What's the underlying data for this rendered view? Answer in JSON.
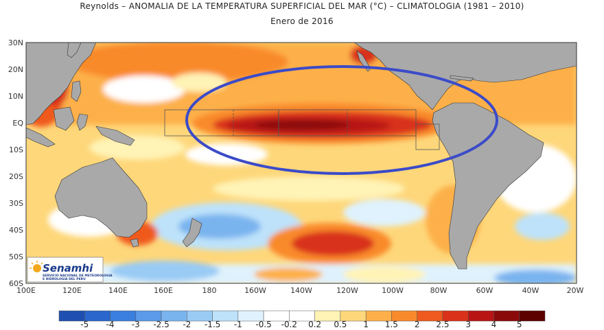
{
  "title": "Reynolds – ANOMALIA DE LA TEMPERATURA SUPERFICIAL DEL MAR (°C) – CLIMATOLOGIA (1981 – 2010)",
  "subtitle": "Enero de 2016",
  "lat_labels": [
    "30N",
    "20N",
    "10N",
    "EQ",
    "10S",
    "20S",
    "30S",
    "40S",
    "50S",
    "60S"
  ],
  "lon_labels": [
    "100E",
    "120E",
    "140E",
    "160E",
    "180",
    "160W",
    "140W",
    "120W",
    "100W",
    "80W",
    "60W",
    "40W",
    "20W"
  ],
  "colorbar": {
    "labels": [
      "-5",
      "-4",
      "-3",
      "-2.5",
      "-2",
      "-1.5",
      "-1",
      "-0.5",
      "-0.2",
      "0.2",
      "0.5",
      "1",
      "1.5",
      "2",
      "2.5",
      "3",
      "4",
      "5"
    ],
    "colors": [
      "#1f4fb0",
      "#2a66cc",
      "#3a7fde",
      "#5a9ae8",
      "#7ab4ef",
      "#99cbf5",
      "#bde2fa",
      "#dff2fd",
      "#ffffff",
      "#ffffff",
      "#fff3b5",
      "#fed77a",
      "#fdb04a",
      "#f98a2c",
      "#ef5a1e",
      "#d9321a",
      "#b81414",
      "#8a0a0a",
      "#5c0000"
    ]
  },
  "logo": {
    "name": "Senamhi",
    "subtitle_line1": "SERVICIO NACIONAL DE METEOROLOGIA",
    "subtitle_line2": "E HIDROLOGIA DEL PERU"
  },
  "colors": {
    "land": "#a9a9a9",
    "highlight_ellipse": "#3b4bc8",
    "box": "#555555"
  }
}
